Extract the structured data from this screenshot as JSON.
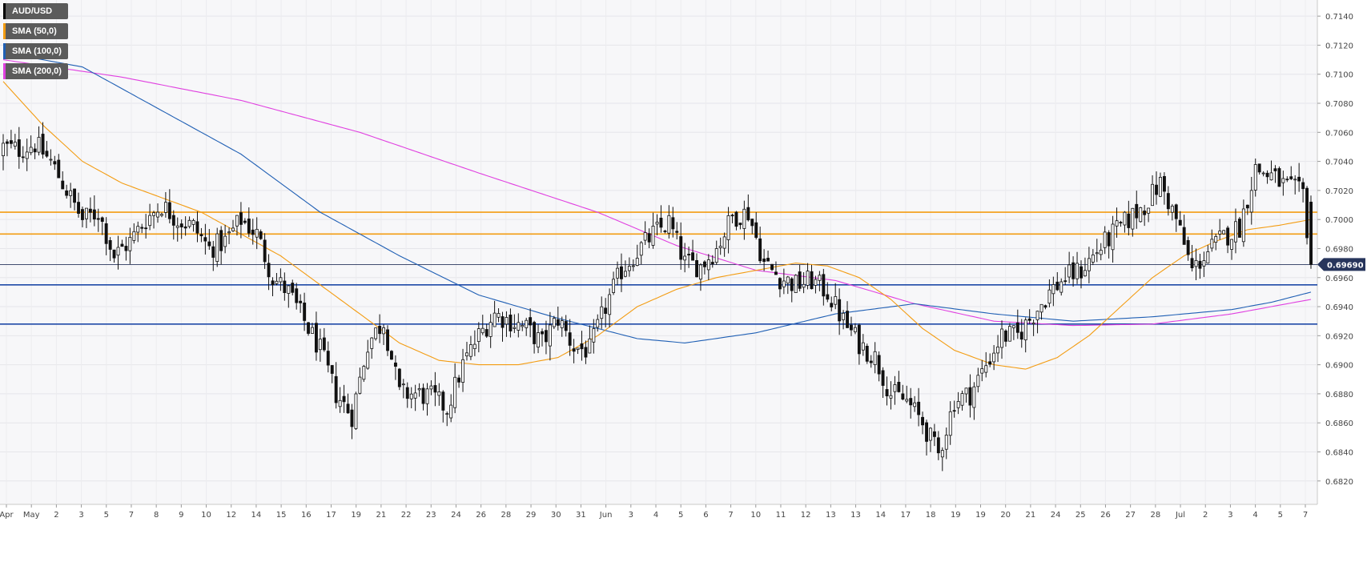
{
  "legend": [
    {
      "label": "AUD/USD",
      "color": "#000000"
    },
    {
      "label": "SMA (50,0)",
      "color": "#f39c12"
    },
    {
      "label": "SMA (100,0)",
      "color": "#1f5fb4"
    },
    {
      "label": "SMA (200,0)",
      "color": "#e040e0"
    }
  ],
  "chart_data": {
    "type": "candlestick",
    "symbol": "AUD/USD",
    "ylim": [
      0.6805,
      0.715
    ],
    "y_ticks": [
      "0.7140",
      "0.7120",
      "0.7100",
      "0.7080",
      "0.7060",
      "0.7040",
      "0.7020",
      "0.7000",
      "0.6980",
      "0.6960",
      "0.6940",
      "0.6920",
      "0.6900",
      "0.6880",
      "0.6860",
      "0.6840",
      "0.6820"
    ],
    "x_ticks": [
      "Apr",
      "May",
      "2",
      "3",
      "5",
      "7",
      "8",
      "9",
      "10",
      "12",
      "14",
      "15",
      "16",
      "17",
      "19",
      "21",
      "22",
      "23",
      "24",
      "26",
      "28",
      "29",
      "30",
      "31",
      "Jun",
      "3",
      "4",
      "5",
      "6",
      "7",
      "10",
      "11",
      "12",
      "13",
      "13",
      "14",
      "17",
      "18",
      "19",
      "19",
      "20",
      "21",
      "24",
      "25",
      "26",
      "27",
      "28",
      "Jul",
      "2",
      "3",
      "4",
      "5",
      "7"
    ],
    "current_price": "0.69690",
    "horizontal_levels": [
      {
        "value": 0.7005,
        "color": "#f39c12",
        "role": "resistance"
      },
      {
        "value": 0.699,
        "color": "#f39c12",
        "role": "resistance"
      },
      {
        "value": 0.6955,
        "color": "#1f4aa8",
        "role": "support"
      },
      {
        "value": 0.6928,
        "color": "#1f4aa8",
        "role": "support"
      }
    ],
    "close_anchors": [
      [
        0,
        0.705
      ],
      [
        4,
        0.7048
      ],
      [
        8,
        0.7052
      ],
      [
        12,
        0.704
      ],
      [
        16,
        0.702
      ],
      [
        20,
        0.7
      ],
      [
        24,
        0.7005
      ],
      [
        28,
        0.6975
      ],
      [
        32,
        0.6985
      ],
      [
        36,
        0.7
      ],
      [
        40,
        0.701
      ],
      [
        44,
        0.7
      ],
      [
        48,
        0.6995
      ],
      [
        52,
        0.698
      ],
      [
        56,
        0.6985
      ],
      [
        60,
        0.7
      ],
      [
        64,
        0.699
      ],
      [
        68,
        0.696
      ],
      [
        72,
        0.695
      ],
      [
        76,
        0.693
      ],
      [
        80,
        0.691
      ],
      [
        84,
        0.688
      ],
      [
        88,
        0.6865
      ],
      [
        92,
        0.6915
      ],
      [
        96,
        0.693
      ],
      [
        100,
        0.688
      ],
      [
        104,
        0.688
      ],
      [
        108,
        0.6878
      ],
      [
        112,
        0.687
      ],
      [
        116,
        0.69
      ],
      [
        120,
        0.692
      ],
      [
        124,
        0.6935
      ],
      [
        128,
        0.693
      ],
      [
        132,
        0.6925
      ],
      [
        136,
        0.6915
      ],
      [
        140,
        0.6932
      ],
      [
        144,
        0.6912
      ],
      [
        148,
        0.691
      ],
      [
        152,
        0.694
      ],
      [
        156,
        0.6965
      ],
      [
        160,
        0.6978
      ],
      [
        164,
        0.699
      ],
      [
        168,
        0.6998
      ],
      [
        172,
        0.697
      ],
      [
        176,
        0.6968
      ],
      [
        180,
        0.698
      ],
      [
        184,
        0.7002
      ],
      [
        188,
        0.7005
      ],
      [
        192,
        0.697
      ],
      [
        196,
        0.696
      ],
      [
        200,
        0.6955
      ],
      [
        204,
        0.6958
      ],
      [
        208,
        0.695
      ],
      [
        212,
        0.693
      ],
      [
        216,
        0.6915
      ],
      [
        220,
        0.6905
      ],
      [
        224,
        0.688
      ],
      [
        228,
        0.6875
      ],
      [
        232,
        0.686
      ],
      [
        236,
        0.6838
      ],
      [
        240,
        0.6875
      ],
      [
        244,
        0.688
      ],
      [
        248,
        0.69
      ],
      [
        252,
        0.692
      ],
      [
        256,
        0.692
      ],
      [
        260,
        0.6935
      ],
      [
        264,
        0.695
      ],
      [
        268,
        0.696
      ],
      [
        272,
        0.6965
      ],
      [
        276,
        0.6978
      ],
      [
        280,
        0.699
      ],
      [
        284,
        0.7
      ],
      [
        288,
        0.701
      ],
      [
        292,
        0.7025
      ],
      [
        296,
        0.7
      ],
      [
        300,
        0.6965
      ],
      [
        304,
        0.6978
      ],
      [
        308,
        0.6988
      ],
      [
        312,
        0.6995
      ],
      [
        316,
        0.7035
      ],
      [
        320,
        0.703
      ],
      [
        324,
        0.7022
      ],
      [
        328,
        0.7018
      ],
      [
        330,
        0.6969
      ]
    ],
    "sma50_anchors": [
      [
        0,
        0.7095
      ],
      [
        10,
        0.7065
      ],
      [
        20,
        0.704
      ],
      [
        30,
        0.7025
      ],
      [
        40,
        0.7015
      ],
      [
        50,
        0.7005
      ],
      [
        60,
        0.699
      ],
      [
        70,
        0.6975
      ],
      [
        80,
        0.6955
      ],
      [
        90,
        0.6935
      ],
      [
        100,
        0.6915
      ],
      [
        110,
        0.6903
      ],
      [
        120,
        0.69
      ],
      [
        130,
        0.69
      ],
      [
        140,
        0.6905
      ],
      [
        150,
        0.692
      ],
      [
        160,
        0.694
      ],
      [
        170,
        0.6952
      ],
      [
        180,
        0.696
      ],
      [
        190,
        0.6965
      ],
      [
        200,
        0.697
      ],
      [
        208,
        0.6968
      ],
      [
        216,
        0.696
      ],
      [
        224,
        0.6945
      ],
      [
        232,
        0.6925
      ],
      [
        240,
        0.691
      ],
      [
        250,
        0.69
      ],
      [
        258,
        0.6897
      ],
      [
        266,
        0.6905
      ],
      [
        274,
        0.692
      ],
      [
        282,
        0.694
      ],
      [
        290,
        0.696
      ],
      [
        298,
        0.6975
      ],
      [
        306,
        0.6985
      ],
      [
        314,
        0.6993
      ],
      [
        322,
        0.6996
      ],
      [
        330,
        0.7
      ]
    ],
    "sma100_anchors": [
      [
        0,
        0.7115
      ],
      [
        20,
        0.7105
      ],
      [
        40,
        0.7075
      ],
      [
        60,
        0.7045
      ],
      [
        80,
        0.7005
      ],
      [
        100,
        0.6975
      ],
      [
        120,
        0.6948
      ],
      [
        140,
        0.6932
      ],
      [
        160,
        0.6918
      ],
      [
        172,
        0.6915
      ],
      [
        190,
        0.6922
      ],
      [
        210,
        0.6935
      ],
      [
        230,
        0.6942
      ],
      [
        250,
        0.6935
      ],
      [
        270,
        0.693
      ],
      [
        290,
        0.6933
      ],
      [
        310,
        0.6938
      ],
      [
        320,
        0.6943
      ],
      [
        330,
        0.695
      ]
    ],
    "sma200_anchors": [
      [
        0,
        0.711
      ],
      [
        30,
        0.7098
      ],
      [
        60,
        0.7082
      ],
      [
        90,
        0.706
      ],
      [
        120,
        0.7032
      ],
      [
        150,
        0.7005
      ],
      [
        170,
        0.6982
      ],
      [
        190,
        0.6965
      ],
      [
        210,
        0.6958
      ],
      [
        230,
        0.6942
      ],
      [
        250,
        0.693
      ],
      [
        270,
        0.6927
      ],
      [
        290,
        0.6928
      ],
      [
        310,
        0.6935
      ],
      [
        330,
        0.6945
      ]
    ]
  }
}
